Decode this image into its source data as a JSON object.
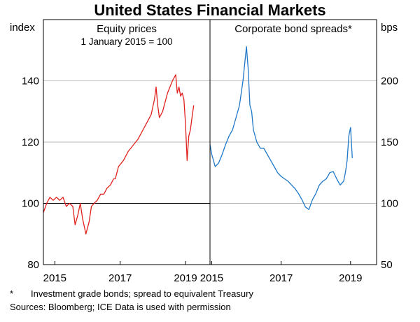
{
  "chart_data": [
    {
      "type": "line",
      "figure_title": "United States Financial Markets",
      "title": "Equity prices",
      "subtitle": "1 January 2015 = 100",
      "ylabel": "index",
      "ylim": [
        80,
        160
      ],
      "yticks": [
        80,
        100,
        120,
        140
      ],
      "xlim": [
        2014.65,
        2019.75
      ],
      "xticks": [
        2015,
        2017,
        2019
      ],
      "reference_line": 100,
      "color": "#e0211d",
      "series": [
        {
          "name": "Equity prices",
          "x": [
            2014.65,
            2014.75,
            2014.85,
            2014.95,
            2015.05,
            2015.15,
            2015.25,
            2015.35,
            2015.45,
            2015.55,
            2015.62,
            2015.7,
            2015.78,
            2015.85,
            2015.95,
            2016.05,
            2016.12,
            2016.2,
            2016.3,
            2016.4,
            2016.5,
            2016.6,
            2016.7,
            2016.8,
            2016.85,
            2016.95,
            2017.1,
            2017.25,
            2017.4,
            2017.55,
            2017.7,
            2017.85,
            2017.95,
            2018.05,
            2018.1,
            2018.15,
            2018.2,
            2018.3,
            2018.45,
            2018.6,
            2018.7,
            2018.75,
            2018.8,
            2018.85,
            2018.9,
            2018.95,
            2019.0,
            2019.05,
            2019.1,
            2019.15,
            2019.2,
            2019.25
          ],
          "values": [
            97,
            100,
            102,
            101,
            102,
            101,
            102,
            99,
            100,
            99,
            93,
            96,
            100,
            95,
            90,
            94,
            99,
            100,
            101,
            103,
            103,
            105,
            106,
            108,
            108,
            112,
            114,
            117,
            119,
            121,
            124,
            127,
            129,
            134,
            138,
            132,
            128,
            130,
            136,
            140,
            142,
            136,
            138,
            135,
            136,
            134,
            126,
            114,
            122,
            124,
            128,
            132
          ]
        }
      ]
    },
    {
      "type": "line",
      "title": "Corporate bond spreads*",
      "ylabel": "bps",
      "ylim": [
        50,
        250
      ],
      "yticks": [
        50,
        100,
        150,
        200
      ],
      "xlim": [
        2014.95,
        2019.75
      ],
      "xticks": [
        2015,
        2017,
        2019
      ],
      "color": "#1f78c8",
      "series": [
        {
          "name": "Corporate bond spreads",
          "x": [
            2014.95,
            2015.0,
            2015.1,
            2015.2,
            2015.3,
            2015.4,
            2015.5,
            2015.6,
            2015.7,
            2015.8,
            2015.9,
            2016.0,
            2016.05,
            2016.1,
            2016.15,
            2016.2,
            2016.3,
            2016.4,
            2016.5,
            2016.6,
            2016.7,
            2016.8,
            2016.9,
            2017.0,
            2017.1,
            2017.2,
            2017.3,
            2017.4,
            2017.5,
            2017.6,
            2017.65,
            2017.7,
            2017.8,
            2017.9,
            2018.0,
            2018.1,
            2018.2,
            2018.3,
            2018.4,
            2018.5,
            2018.6,
            2018.7,
            2018.8,
            2018.85,
            2018.9,
            2018.95,
            2019.0,
            2019.05
          ],
          "values": [
            148,
            140,
            130,
            133,
            140,
            148,
            155,
            160,
            170,
            180,
            200,
            228,
            210,
            180,
            175,
            160,
            150,
            145,
            145,
            140,
            135,
            130,
            125,
            122,
            120,
            118,
            115,
            112,
            108,
            103,
            100,
            97,
            95,
            103,
            108,
            115,
            118,
            120,
            125,
            126,
            120,
            115,
            118,
            125,
            135,
            155,
            162,
            137
          ]
        }
      ]
    }
  ],
  "notes": {
    "footnote_mark": "*",
    "footnote_text": "Investment grade bonds; spread to equivalent Treasury",
    "sources": "Sources:  Bloomberg; ICE Data is used with permission"
  }
}
